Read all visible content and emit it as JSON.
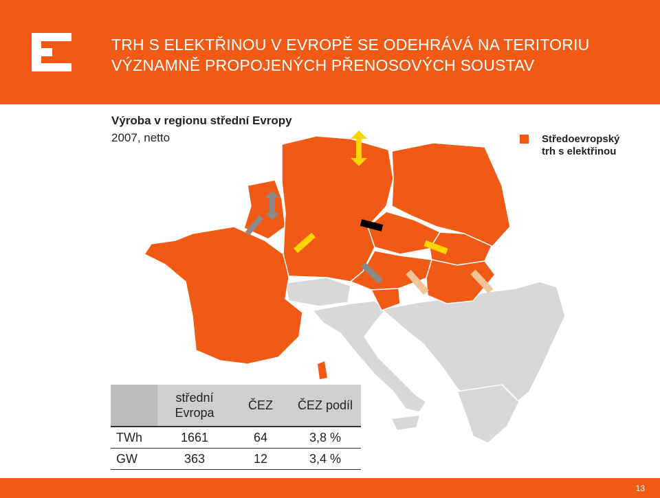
{
  "header": {
    "title_line1": "TRH S ELEKTŘINOU V EVROPĚ SE ODEHRÁVÁ NA TERITORIU",
    "title_line2": "VÝZNAMNĚ PROPOJENÝCH PŘENOSOVÝCH SOUSTAV",
    "logo_icon": "cez-logo-icon",
    "brand_color": "#f05a14"
  },
  "map": {
    "subtitle": "Výroba v regionu střední Evropy",
    "year": "2007, netto",
    "legend_label_line1": "Středoevropský",
    "legend_label_line2": "trh s elektřinou",
    "highlight_color": "#f05a14",
    "other_color": "#d8d8d8",
    "arrow_colors": [
      "#ffd400",
      "#8a8a8a",
      "#000000",
      "#f5c39a"
    ]
  },
  "table": {
    "headers": [
      "",
      "střední Evropa",
      "ČEZ",
      "ČEZ podíl"
    ],
    "rows": [
      {
        "label": "TWh",
        "region": "1661",
        "cez": "64",
        "share": "3,8 %"
      },
      {
        "label": "GW",
        "region": "363",
        "cez": "12",
        "share": "3,4 %"
      }
    ]
  },
  "footer": {
    "page_number": "13"
  }
}
